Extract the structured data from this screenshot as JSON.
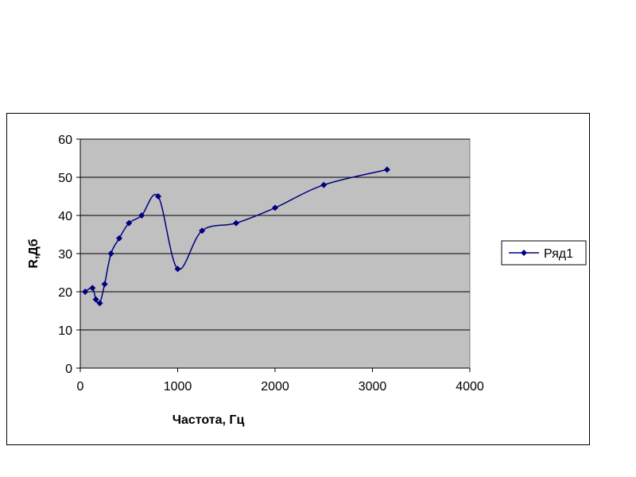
{
  "chart_data": {
    "type": "line",
    "title": "",
    "xlabel": "Частота, Гц",
    "ylabel": "R,Дб",
    "xlim": [
      0,
      4000
    ],
    "ylim": [
      0,
      60
    ],
    "x_ticks": [
      0,
      1000,
      2000,
      3000,
      4000
    ],
    "y_ticks": [
      0,
      10,
      20,
      30,
      40,
      50,
      60
    ],
    "grid": true,
    "plot_background": "#c0c0c0",
    "legend_position": "right",
    "series": [
      {
        "name": "Ряд1",
        "color": "#000080",
        "marker": "diamond",
        "smooth": true,
        "x": [
          50,
          125,
          160,
          200,
          250,
          315,
          400,
          500,
          630,
          800,
          1000,
          1250,
          1600,
          2000,
          2500,
          3150
        ],
        "y": [
          20,
          21,
          18,
          17,
          22,
          30,
          34,
          38,
          40,
          45,
          26,
          36,
          38,
          42,
          48,
          52
        ]
      }
    ]
  }
}
